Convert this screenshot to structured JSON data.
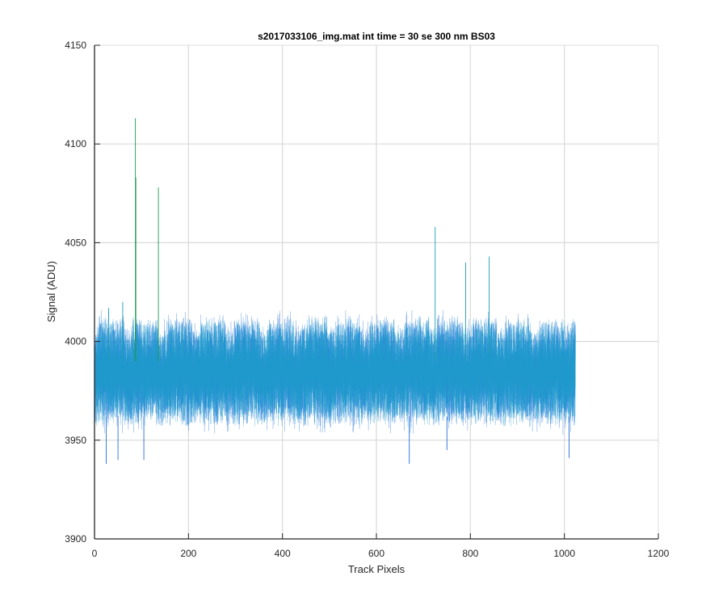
{
  "chart_data": {
    "type": "line",
    "title": "s2017033106_img.mat int time = 30 se  300 nm BS03",
    "xlabel": "Track Pixels",
    "ylabel": "Signal (ADU)",
    "xlim": [
      0,
      1200
    ],
    "ylim": [
      3900,
      4150
    ],
    "xticks": [
      "0",
      "200",
      "400",
      "600",
      "800",
      "1000",
      "1200"
    ],
    "yticks": [
      "3900",
      "3950",
      "4000",
      "4050",
      "4100",
      "4150"
    ],
    "grid": true,
    "n_pixels": 1024,
    "series_colors": [
      "#0a5fd6",
      "#1173d8",
      "#168ad2",
      "#1aa0cc",
      "#1f9bc9"
    ],
    "band": {
      "lower_typical": 3963,
      "upper_typical": 4003,
      "lower_extreme": 3952,
      "upper_extreme": 4012,
      "periodic_bump_period": 72,
      "periodic_bump_amplitude": 8
    },
    "spikes": [
      {
        "x": 87,
        "y": 4113,
        "color": "#1f9a5a"
      },
      {
        "x": 88,
        "y": 4083,
        "color": "#1f9a5a"
      },
      {
        "x": 136,
        "y": 4078,
        "color": "#1f9a5a"
      },
      {
        "x": 725,
        "y": 4058,
        "color": "#1a9fb0"
      },
      {
        "x": 790,
        "y": 4040,
        "color": "#1a9fb0"
      },
      {
        "x": 840,
        "y": 4043,
        "color": "#1a9fb0"
      },
      {
        "x": 60,
        "y": 4020,
        "color": "#1a9fb0"
      },
      {
        "x": 30,
        "y": 4017,
        "color": "#1a9fb0"
      }
    ],
    "dips": [
      {
        "x": 25,
        "y": 3938
      },
      {
        "x": 50,
        "y": 3940
      },
      {
        "x": 105,
        "y": 3940
      },
      {
        "x": 670,
        "y": 3938
      },
      {
        "x": 750,
        "y": 3945
      },
      {
        "x": 1010,
        "y": 3941
      }
    ]
  }
}
